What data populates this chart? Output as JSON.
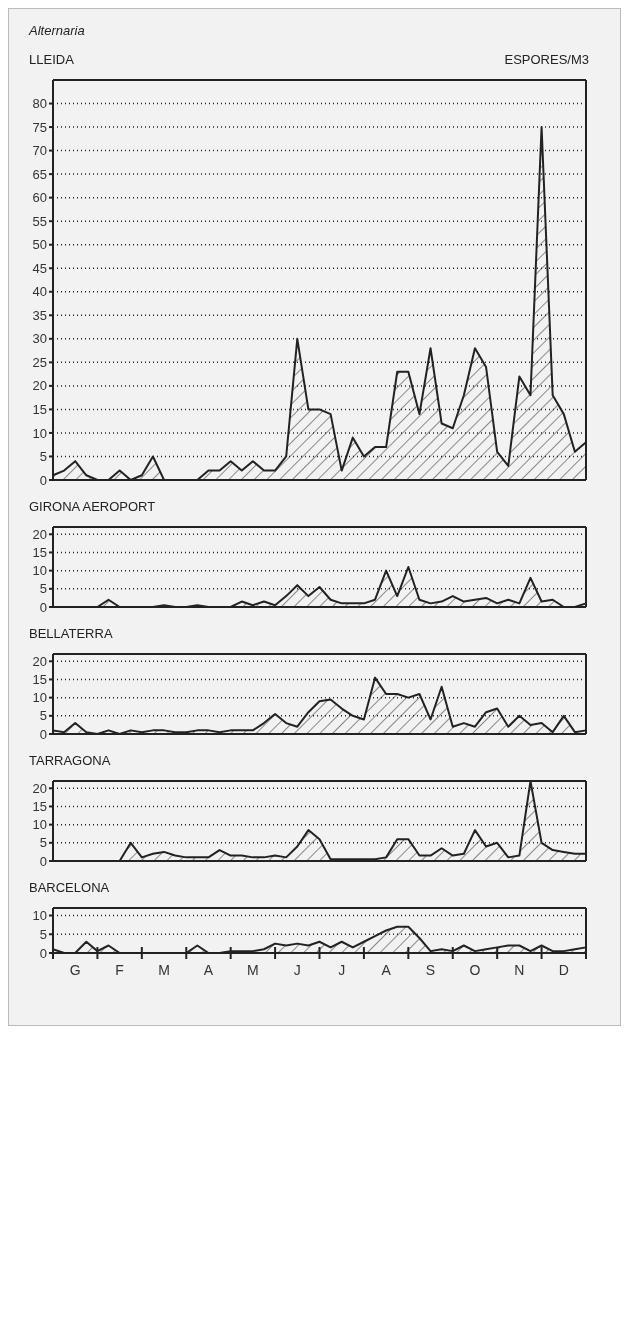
{
  "chart_data": [
    {
      "type": "area",
      "title": "LLEIDA",
      "ylabel": "ESPORES/M3",
      "annotations": [
        "Alternaria"
      ],
      "grid": "y",
      "tick_labels": "y",
      "ylim": [
        0,
        85
      ],
      "yticks": [
        0,
        5,
        10,
        15,
        20,
        25,
        30,
        35,
        40,
        45,
        50,
        55,
        60,
        65,
        70,
        75,
        80
      ],
      "categories": [
        null,
        null,
        null,
        null,
        null,
        null,
        null,
        null,
        null,
        null,
        null,
        null,
        null,
        null,
        null,
        null,
        null,
        null,
        null,
        null,
        null,
        null,
        null,
        null,
        null,
        null,
        null,
        null,
        null,
        null,
        null,
        null,
        null,
        null,
        null,
        null,
        null,
        null,
        null,
        null,
        null,
        null,
        null,
        null,
        null,
        null,
        null,
        null,
        null
      ],
      "series": [
        {
          "color": "#222222",
          "values": [
            1,
            2,
            4,
            1,
            0,
            0,
            2,
            0,
            1,
            5,
            0,
            0,
            0,
            0,
            2,
            2,
            4,
            2,
            4,
            2,
            2,
            5,
            30,
            15,
            15,
            14,
            2,
            9,
            5,
            7,
            7,
            23,
            23,
            14,
            28,
            12,
            11,
            18,
            28,
            24,
            6,
            3,
            22,
            18,
            75,
            18,
            14,
            6,
            8
          ]
        }
      ]
    },
    {
      "type": "area",
      "title": "GIRONA AEROPORT",
      "grid": "y",
      "tick_labels": "y",
      "ylim": [
        0,
        22
      ],
      "yticks": [
        0,
        5,
        10,
        15,
        20
      ],
      "categories": [
        null,
        null,
        null,
        null,
        null,
        null,
        null,
        null,
        null,
        null,
        null,
        null,
        null,
        null,
        null,
        null,
        null,
        null,
        null,
        null,
        null,
        null,
        null,
        null,
        null,
        null,
        null,
        null,
        null,
        null,
        null,
        null,
        null,
        null,
        null,
        null,
        null,
        null,
        null,
        null,
        null,
        null,
        null,
        null,
        null,
        null,
        null,
        null,
        null
      ],
      "series": [
        {
          "color": "#222222",
          "values": [
            0,
            0,
            0,
            0,
            0,
            2,
            0,
            0,
            0,
            0,
            0.5,
            0,
            0,
            0.5,
            0,
            0,
            0,
            1.5,
            0.5,
            1.5,
            0.5,
            3,
            6,
            3,
            5.5,
            2,
            1,
            1,
            1,
            2,
            10,
            3,
            11,
            2,
            1,
            1.5,
            3,
            1.5,
            2,
            2.5,
            1,
            2,
            1,
            8,
            1.5,
            2,
            0,
            0,
            1
          ]
        }
      ]
    },
    {
      "type": "area",
      "title": "BELLATERRA",
      "grid": "y",
      "tick_labels": "y",
      "ylim": [
        0,
        22
      ],
      "yticks": [
        0,
        5,
        10,
        15,
        20
      ],
      "categories": [
        null,
        null,
        null,
        null,
        null,
        null,
        null,
        null,
        null,
        null,
        null,
        null,
        null,
        null,
        null,
        null,
        null,
        null,
        null,
        null,
        null,
        null,
        null,
        null,
        null,
        null,
        null,
        null,
        null,
        null,
        null,
        null,
        null,
        null,
        null,
        null,
        null,
        null,
        null,
        null,
        null,
        null,
        null,
        null,
        null,
        null,
        null,
        null,
        null
      ],
      "series": [
        {
          "color": "#222222",
          "values": [
            1,
            0.5,
            3,
            0.5,
            0,
            1,
            0,
            1,
            0.5,
            1,
            1,
            0.5,
            0.5,
            1,
            1,
            0.5,
            1,
            1,
            1,
            3,
            5.5,
            3,
            2,
            6,
            9,
            9.5,
            7,
            5,
            4,
            15.5,
            11,
            11,
            10,
            11,
            4,
            13,
            2,
            3,
            2,
            6,
            7,
            2,
            5,
            2.5,
            3,
            0.5,
            5,
            0.5,
            1
          ]
        }
      ]
    },
    {
      "type": "area",
      "title": "TARRAGONA",
      "grid": "y",
      "tick_labels": "y",
      "ylim": [
        0,
        22
      ],
      "yticks": [
        0,
        5,
        10,
        15,
        20
      ],
      "categories": [
        null,
        null,
        null,
        null,
        null,
        null,
        null,
        null,
        null,
        null,
        null,
        null,
        null,
        null,
        null,
        null,
        null,
        null,
        null,
        null,
        null,
        null,
        null,
        null,
        null,
        null,
        null,
        null,
        null,
        null,
        null,
        null,
        null,
        null,
        null,
        null,
        null,
        null,
        null,
        null,
        null,
        null,
        null,
        null,
        null,
        null,
        null,
        null,
        null
      ],
      "series": [
        {
          "color": "#222222",
          "values": [
            0,
            0,
            0,
            0,
            0,
            0,
            0,
            5,
            1,
            2,
            2.5,
            1.5,
            1,
            1,
            1,
            3,
            1.5,
            1.5,
            1,
            1,
            1.5,
            1,
            4,
            8.5,
            6,
            0.5,
            0.5,
            0.5,
            0.5,
            0.5,
            1,
            6,
            6,
            1.5,
            1.5,
            3.5,
            1.5,
            2,
            8.5,
            4,
            5,
            1,
            1.5,
            22,
            5,
            3,
            2.5,
            2,
            2
          ]
        }
      ]
    },
    {
      "type": "area",
      "title": "BARCELONA",
      "grid": "y",
      "ylim": [
        0,
        12
      ],
      "yticks": [
        0,
        5,
        10
      ],
      "categories": [
        null,
        null,
        "G",
        null,
        null,
        null,
        "F",
        null,
        null,
        null,
        "M",
        null,
        null,
        null,
        "A",
        null,
        null,
        null,
        "M",
        null,
        null,
        null,
        "J",
        null,
        null,
        null,
        "J",
        null,
        null,
        null,
        "A",
        null,
        null,
        null,
        "S",
        null,
        null,
        null,
        "O",
        null,
        null,
        null,
        "N",
        null,
        null,
        null,
        "D",
        null,
        null
      ],
      "series": [
        {
          "color": "#222222",
          "values": [
            1,
            0,
            0,
            3,
            0.5,
            2,
            0,
            0,
            0,
            0,
            0,
            0,
            0,
            2,
            0,
            0,
            0.5,
            0.5,
            0.5,
            1,
            2.5,
            2,
            2.5,
            2,
            3,
            1.5,
            3,
            1.5,
            3,
            4.5,
            6,
            7,
            7,
            4,
            0.5,
            1,
            0.5,
            2,
            0.5,
            1,
            1.5,
            2,
            2,
            0.5,
            2,
            0.5,
            0.5,
            1,
            1.5
          ]
        }
      ]
    }
  ]
}
